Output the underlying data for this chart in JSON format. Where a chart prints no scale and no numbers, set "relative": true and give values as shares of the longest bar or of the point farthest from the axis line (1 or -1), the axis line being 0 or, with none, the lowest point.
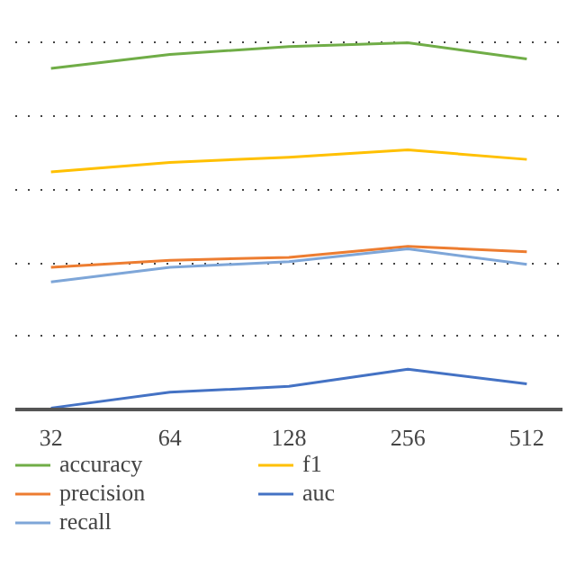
{
  "chart_data": {
    "type": "line",
    "relative": true,
    "categories": [
      "32",
      "64",
      "128",
      "256",
      "512"
    ],
    "series": [
      {
        "name": "accuracy",
        "color": "#70ad47",
        "values": [
          0.93,
          0.968,
          0.99,
          1,
          0.956
        ]
      },
      {
        "name": "precision",
        "color": "#ed7d31",
        "values": [
          0.388,
          0.407,
          0.415,
          0.445,
          0.43
        ]
      },
      {
        "name": "recall",
        "color": "#7ea6d8",
        "values": [
          0.348,
          0.388,
          0.403,
          0.438,
          0.396
        ]
      },
      {
        "name": "f1",
        "color": "#ffc000",
        "values": [
          0.648,
          0.674,
          0.688,
          0.708,
          0.682
        ]
      },
      {
        "name": "auc",
        "color": "#4472c4",
        "values": [
          0.004,
          0.047,
          0.063,
          0.11,
          0.07
        ]
      }
    ],
    "grid": "y",
    "legend": "bottom",
    "marker": "none",
    "line_style": "solid"
  }
}
